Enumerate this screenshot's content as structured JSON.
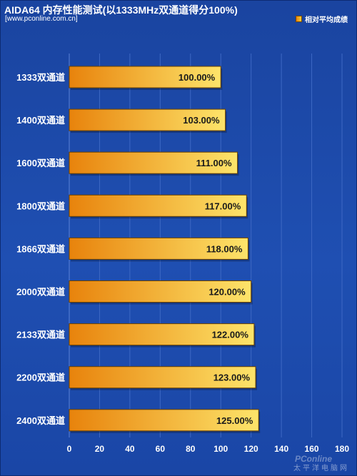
{
  "chart_data": {
    "type": "bar",
    "orientation": "horizontal",
    "title": "AIDA64 内存性能测试(以1333MHz双通道得分100%)",
    "source": "[www.pconline.com.cn]",
    "legend": {
      "label": "相对平均成绩",
      "position": "top-right"
    },
    "categories": [
      "1333双通道",
      "1400双通道",
      "1600双通道",
      "1800双通道",
      "1866双通道",
      "2000双通道",
      "2133双通道",
      "2200双通道",
      "2400双通道"
    ],
    "values": [
      100,
      103,
      111,
      117,
      118,
      120,
      122,
      123,
      125
    ],
    "value_labels": [
      "100.00%",
      "103.00%",
      "111.00%",
      "117.00%",
      "118.00%",
      "120.00%",
      "122.00%",
      "123.00%",
      "125.00%"
    ],
    "xlim": [
      0,
      180
    ],
    "xticks": [
      0,
      20,
      40,
      60,
      80,
      100,
      120,
      140,
      160,
      180
    ],
    "grid": "vertical",
    "colors": {
      "bar_start": "#e8830c",
      "bar_end": "#fde46a",
      "bar_edge": "#6b4200",
      "grid": "#3d68c4",
      "background": "#1d4aa7"
    }
  },
  "watermark": {
    "logo": "PConline",
    "text": "太平洋电脑网"
  }
}
